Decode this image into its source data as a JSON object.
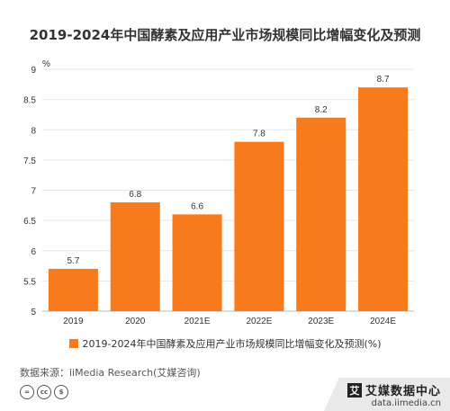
{
  "chart_data": {
    "type": "bar",
    "title": "2019-2024年中国酵素及应用产业市场规模同比增幅变化及预测",
    "unit": "%",
    "categories": [
      "2019",
      "2020",
      "2021E",
      "2022E",
      "2023E",
      "2024E"
    ],
    "values": [
      5.7,
      6.8,
      6.6,
      7.8,
      8.2,
      8.7
    ],
    "value_labels": [
      "5.7",
      "6.8",
      "6.6",
      "7.8",
      "8.2",
      "8.7"
    ],
    "ylim": [
      5,
      9
    ],
    "yticks": [
      5,
      5.5,
      6,
      6.5,
      7,
      7.5,
      8,
      8.5,
      9
    ],
    "ytick_labels": [
      "5",
      "5.5",
      "6",
      "6.5",
      "7",
      "7.5",
      "8",
      "8.5",
      "9"
    ],
    "grid": true,
    "legend": "2019-2024年中国酵素及应用产业市场规模同比增幅变化及预测(%)",
    "legend_position": "bottom",
    "bar_color": "#F77B1C"
  },
  "source": "数据来源：iiMedia Research(艾媒咨询)",
  "license_icons": [
    "=",
    "cc",
    "$"
  ],
  "brand": {
    "logo_char": "艾",
    "name": "艾媒数据中心",
    "domain": "data.iimedia.cn"
  }
}
